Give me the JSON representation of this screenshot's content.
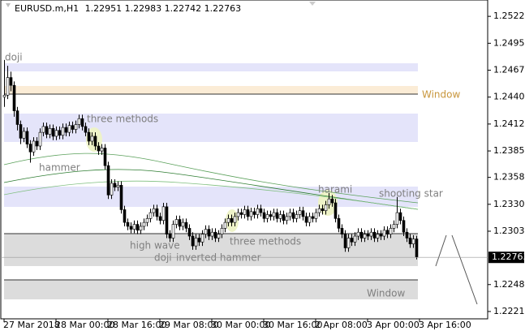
{
  "header": {
    "symbol": "EURUSD.m,H1"
  },
  "chart_data": {
    "type": "candlestick",
    "colors": {
      "up": "#ffffff",
      "down": "#000000",
      "outline": "#000000"
    },
    "xlim": [
      -1,
      129
    ],
    "ylim": [
      1.22135,
      1.25392
    ],
    "yticks": [
      1.25225,
      {
        "value": 1.2495,
        "label": "1.24950"
      },
      1.24675,
      {
        "value": 1.244,
        "label": "1.24400"
      },
      1.24125,
      {
        "value": 1.2385,
        "label": "1.23850"
      },
      {
        "value": 1.2358,
        "label": "1.23580"
      },
      1.23305,
      {
        "value": 1.2303,
        "label": "1.23030"
      },
      1.22485,
      {
        "value": 1.2221,
        "label": "1.22210"
      }
    ],
    "xticks": [
      {
        "value": 0,
        "label": "27 Mar 2018"
      },
      {
        "value": 16,
        "label": "28 Mar 00:00"
      },
      {
        "value": 32,
        "label": "28 Mar 16:00"
      },
      {
        "value": 48,
        "label": "29 Mar 08:00"
      },
      {
        "value": 64,
        "label": "30 Mar 00:00"
      },
      {
        "value": 80,
        "label": "30 Mar 16:00"
      },
      {
        "value": 96,
        "label": "2 Apr 08:00"
      },
      {
        "value": 112,
        "label": "3 Apr 00:00"
      },
      {
        "value": 128,
        "label": "3 Apr 16:00"
      }
    ],
    "annotations": [
      "doji",
      "three methods",
      "hammer",
      "harami",
      "shooting star",
      "high wave",
      "doji",
      "inverted hammer",
      "three methods",
      "Window",
      "Window"
    ],
    "ohlc": [
      [
        1.244,
        1.2478,
        1.243,
        1.2442
      ],
      [
        1.2442,
        1.2472,
        1.2438,
        1.246
      ],
      [
        1.246,
        1.2466,
        1.2446,
        1.2452
      ],
      [
        1.2452,
        1.2456,
        1.242,
        1.2426
      ],
      [
        1.2426,
        1.243,
        1.2406,
        1.2412
      ],
      [
        1.2412,
        1.2416,
        1.2392,
        1.2398
      ],
      [
        1.2398,
        1.2409,
        1.2394,
        1.2405
      ],
      [
        1.2405,
        1.2409,
        1.2388,
        1.2392
      ],
      [
        1.2392,
        1.2396,
        1.2373,
        1.2384
      ],
      [
        1.2384,
        1.2399,
        1.238,
        1.2395
      ],
      [
        1.2395,
        1.2399,
        1.2386,
        1.239
      ],
      [
        1.239,
        1.2408,
        1.2386,
        1.2404
      ],
      [
        1.2404,
        1.2414,
        1.24,
        1.241
      ],
      [
        1.241,
        1.2414,
        1.2398,
        1.2402
      ],
      [
        1.2402,
        1.2412,
        1.2398,
        1.2408
      ],
      [
        1.2408,
        1.2412,
        1.2396,
        1.24
      ],
      [
        1.24,
        1.241,
        1.2396,
        1.2406
      ],
      [
        1.2406,
        1.241,
        1.2397,
        1.2401
      ],
      [
        1.2401,
        1.2413,
        1.2397,
        1.2409
      ],
      [
        1.2409,
        1.2413,
        1.24,
        1.2404
      ],
      [
        1.2404,
        1.2415,
        1.24,
        1.2411
      ],
      [
        1.2411,
        1.2415,
        1.2403,
        1.2407
      ],
      [
        1.2407,
        1.2416,
        1.2403,
        1.2412
      ],
      [
        1.2412,
        1.2422,
        1.2408,
        1.2418
      ],
      [
        1.2418,
        1.2422,
        1.2406,
        1.241
      ],
      [
        1.241,
        1.2414,
        1.24,
        1.2404
      ],
      [
        1.2404,
        1.2408,
        1.2391,
        1.2395
      ],
      [
        1.2395,
        1.2404,
        1.2391,
        1.24
      ],
      [
        1.24,
        1.2404,
        1.2386,
        1.239
      ],
      [
        1.239,
        1.2394,
        1.2381,
        1.2385
      ],
      [
        1.2385,
        1.2392,
        1.2381,
        1.2388
      ],
      [
        1.2388,
        1.2392,
        1.2366,
        1.237
      ],
      [
        1.237,
        1.2374,
        1.2336,
        1.234
      ],
      [
        1.234,
        1.2356,
        1.2336,
        1.2352
      ],
      [
        1.2352,
        1.2356,
        1.2344,
        1.2348
      ],
      [
        1.2348,
        1.2354,
        1.2344,
        1.235
      ],
      [
        1.235,
        1.2354,
        1.2321,
        1.2325
      ],
      [
        1.2325,
        1.2329,
        1.2308,
        1.2312
      ],
      [
        1.2312,
        1.2316,
        1.2304,
        1.2308
      ],
      [
        1.2308,
        1.2312,
        1.2301,
        1.2305
      ],
      [
        1.2305,
        1.2314,
        1.2301,
        1.231
      ],
      [
        1.231,
        1.2314,
        1.23,
        1.2304
      ],
      [
        1.2304,
        1.2312,
        1.23,
        1.2308
      ],
      [
        1.2308,
        1.2316,
        1.2304,
        1.2312
      ],
      [
        1.2312,
        1.232,
        1.2308,
        1.2316
      ],
      [
        1.2316,
        1.2326,
        1.2312,
        1.2322
      ],
      [
        1.2322,
        1.233,
        1.2318,
        1.2326
      ],
      [
        1.2326,
        1.233,
        1.2314,
        1.2318
      ],
      [
        1.2318,
        1.2322,
        1.231,
        1.2314
      ],
      [
        1.2314,
        1.2332,
        1.231,
        1.2328
      ],
      [
        1.2328,
        1.2332,
        1.2296,
        1.23
      ],
      [
        1.23,
        1.2304,
        1.2292,
        1.2296
      ],
      [
        1.2296,
        1.2314,
        1.2292,
        1.231
      ],
      [
        1.231,
        1.2319,
        1.2306,
        1.2315
      ],
      [
        1.2315,
        1.2319,
        1.2304,
        1.2308
      ],
      [
        1.2308,
        1.2316,
        1.2304,
        1.2312
      ],
      [
        1.2312,
        1.2316,
        1.2302,
        1.2306
      ],
      [
        1.2306,
        1.231,
        1.2294,
        1.2298
      ],
      [
        1.2298,
        1.2302,
        1.2284,
        1.2288
      ],
      [
        1.2288,
        1.23,
        1.2284,
        1.2296
      ],
      [
        1.2296,
        1.23,
        1.2288,
        1.2292
      ],
      [
        1.2292,
        1.2304,
        1.2288,
        1.23
      ],
      [
        1.23,
        1.2309,
        1.2296,
        1.2305
      ],
      [
        1.2305,
        1.2309,
        1.2294,
        1.2298
      ],
      [
        1.2298,
        1.2306,
        1.2294,
        1.2302
      ],
      [
        1.2302,
        1.2306,
        1.2292,
        1.2296
      ],
      [
        1.2296,
        1.2304,
        1.2292,
        1.23
      ],
      [
        1.23,
        1.231,
        1.2296,
        1.2306
      ],
      [
        1.2306,
        1.2316,
        1.2302,
        1.2312
      ],
      [
        1.2312,
        1.232,
        1.2308,
        1.2316
      ],
      [
        1.2316,
        1.232,
        1.2308,
        1.2312
      ],
      [
        1.2312,
        1.2322,
        1.2308,
        1.2318
      ],
      [
        1.2318,
        1.2326,
        1.2314,
        1.2322
      ],
      [
        1.2322,
        1.2326,
        1.2316,
        1.232
      ],
      [
        1.232,
        1.2329,
        1.2316,
        1.2325
      ],
      [
        1.2325,
        1.2329,
        1.2314,
        1.2318
      ],
      [
        1.2318,
        1.2327,
        1.2314,
        1.2323
      ],
      [
        1.2323,
        1.2327,
        1.2316,
        1.232
      ],
      [
        1.232,
        1.233,
        1.2316,
        1.2326
      ],
      [
        1.2326,
        1.233,
        1.2318,
        1.2322
      ],
      [
        1.2322,
        1.2326,
        1.2312,
        1.2316
      ],
      [
        1.2316,
        1.2324,
        1.2312,
        1.232
      ],
      [
        1.232,
        1.2324,
        1.2314,
        1.2318
      ],
      [
        1.2318,
        1.2326,
        1.2314,
        1.2322
      ],
      [
        1.2322,
        1.2326,
        1.2312,
        1.2316
      ],
      [
        1.2316,
        1.2324,
        1.2312,
        1.232
      ],
      [
        1.232,
        1.2324,
        1.231,
        1.2314
      ],
      [
        1.2314,
        1.2322,
        1.231,
        1.2318
      ],
      [
        1.2318,
        1.2326,
        1.2314,
        1.2322
      ],
      [
        1.2322,
        1.2326,
        1.2312,
        1.2316
      ],
      [
        1.2316,
        1.2324,
        1.2312,
        1.232
      ],
      [
        1.232,
        1.2328,
        1.2316,
        1.2324
      ],
      [
        1.2324,
        1.2328,
        1.2314,
        1.2318
      ],
      [
        1.2318,
        1.2322,
        1.2308,
        1.2312
      ],
      [
        1.2312,
        1.2322,
        1.2308,
        1.2318
      ],
      [
        1.2318,
        1.2322,
        1.2312,
        1.2316
      ],
      [
        1.2316,
        1.2326,
        1.2312,
        1.2322
      ],
      [
        1.2322,
        1.233,
        1.2318,
        1.2326
      ],
      [
        1.2326,
        1.233,
        1.232,
        1.2324
      ],
      [
        1.2324,
        1.2334,
        1.232,
        1.233
      ],
      [
        1.233,
        1.2342,
        1.2326,
        1.2336
      ],
      [
        1.2336,
        1.234,
        1.2328,
        1.2332
      ],
      [
        1.2332,
        1.2336,
        1.2312,
        1.2316
      ],
      [
        1.2316,
        1.232,
        1.2302,
        1.2306
      ],
      [
        1.2306,
        1.231,
        1.2296,
        1.23
      ],
      [
        1.23,
        1.2304,
        1.2282,
        1.2286
      ],
      [
        1.2286,
        1.23,
        1.2282,
        1.2296
      ],
      [
        1.2296,
        1.23,
        1.2288,
        1.2292
      ],
      [
        1.2292,
        1.2302,
        1.2288,
        1.2298
      ],
      [
        1.2298,
        1.2306,
        1.2294,
        1.2302
      ],
      [
        1.2302,
        1.2306,
        1.2292,
        1.2296
      ],
      [
        1.2296,
        1.2304,
        1.2292,
        1.23
      ],
      [
        1.23,
        1.2304,
        1.2294,
        1.2298
      ],
      [
        1.2298,
        1.2306,
        1.2294,
        1.2302
      ],
      [
        1.2302,
        1.2306,
        1.2292,
        1.2296
      ],
      [
        1.2296,
        1.2304,
        1.2292,
        1.23
      ],
      [
        1.23,
        1.2304,
        1.2294,
        1.2298
      ],
      [
        1.2298,
        1.2308,
        1.2294,
        1.2304
      ],
      [
        1.2304,
        1.2308,
        1.2296,
        1.23
      ],
      [
        1.23,
        1.231,
        1.2296,
        1.2306
      ],
      [
        1.2306,
        1.2314,
        1.2302,
        1.231
      ],
      [
        1.231,
        1.2338,
        1.2306,
        1.2322
      ],
      [
        1.2322,
        1.2326,
        1.231,
        1.2314
      ],
      [
        1.2314,
        1.2318,
        1.2298,
        1.2302
      ],
      [
        1.2302,
        1.2306,
        1.2292,
        1.2296
      ],
      [
        1.2296,
        1.23,
        1.2286,
        1.229
      ],
      [
        1.229,
        1.2299,
        1.2286,
        1.2295
      ],
      [
        1.22951,
        1.22983,
        1.22742,
        1.22763
      ]
    ]
  }
}
